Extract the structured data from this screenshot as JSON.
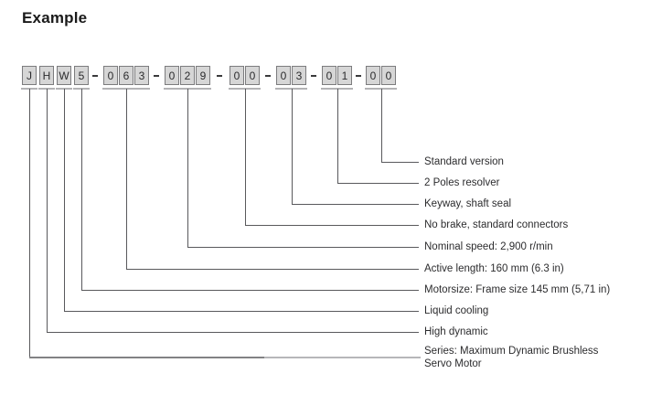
{
  "title": "Example",
  "separator": "-",
  "code_groups": [
    {
      "id": "series",
      "chars": [
        "J"
      ],
      "label_lines": [
        "Series: Maximum Dynamic  Brushless",
        "Servo Motor"
      ]
    },
    {
      "id": "dynamics",
      "chars": [
        "H"
      ],
      "label": "High dynamic"
    },
    {
      "id": "cooling",
      "chars": [
        "W"
      ],
      "label": "Liquid cooling"
    },
    {
      "id": "motorsize",
      "chars": [
        "5"
      ],
      "label": "Motorsize: Frame size 145 mm (5,71 in)"
    },
    {
      "id": "active-length",
      "chars": [
        "0",
        "6",
        "3"
      ],
      "label": "Active length: 160 mm (6.3 in)"
    },
    {
      "id": "nominal-speed",
      "chars": [
        "0",
        "2",
        "9"
      ],
      "label": "Nominal speed: 2,900 r/min"
    },
    {
      "id": "brake-connectors",
      "chars": [
        "0",
        "0"
      ],
      "label": "No brake, standard connectors"
    },
    {
      "id": "shaft-options",
      "chars": [
        "0",
        "3"
      ],
      "label": "Keyway, shaft seal"
    },
    {
      "id": "feedback",
      "chars": [
        "0",
        "1"
      ],
      "label": "2 Poles resolver"
    },
    {
      "id": "version",
      "chars": [
        "0",
        "0"
      ],
      "label": "Standard version"
    }
  ],
  "colors": {
    "box_fill": "#d6d6d6",
    "box_border": "#7c7c7e",
    "connector_dark": "#59595c",
    "underline_light": "#b3b3b5",
    "text": "#2c2c2e"
  }
}
